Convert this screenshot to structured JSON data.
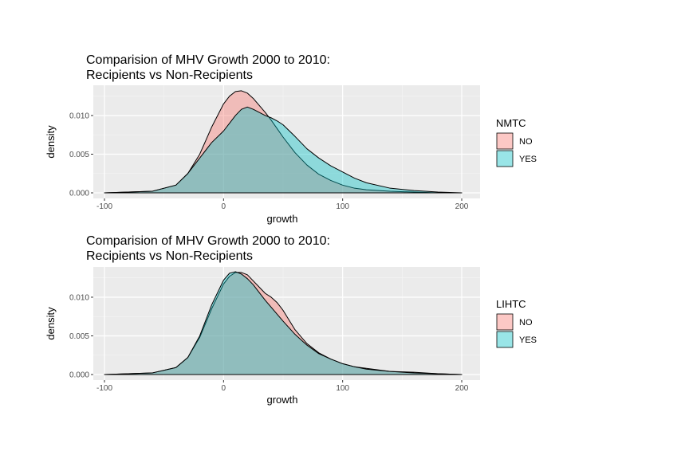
{
  "chart_data": [
    {
      "type": "area",
      "title": [
        "Comparision of MHV Growth 2000 to 2010:",
        "Recipients vs Non-Recipients"
      ],
      "xlabel": "growth",
      "ylabel": "density",
      "xlim": [
        -100,
        200
      ],
      "ylim": [
        0,
        0.0135
      ],
      "x_ticks": [
        -100,
        0,
        100,
        200
      ],
      "y_ticks": [
        0,
        0.005,
        0.01
      ],
      "y_tick_labels": [
        "0.000",
        "0.005",
        "0.010"
      ],
      "grid": true,
      "legend": {
        "title": "NMTC",
        "position": "right"
      },
      "series": [
        {
          "name": "NO",
          "color": "#F8766D",
          "x": [
            -100,
            -80,
            -60,
            -40,
            -30,
            -20,
            -10,
            0,
            5,
            10,
            15,
            20,
            25,
            30,
            35,
            40,
            45,
            50,
            60,
            70,
            80,
            90,
            100,
            110,
            120,
            140,
            160,
            180,
            200
          ],
          "values": [
            0.0,
            0.0001,
            0.0002,
            0.001,
            0.0025,
            0.005,
            0.0085,
            0.0115,
            0.0125,
            0.0131,
            0.0132,
            0.0129,
            0.0122,
            0.0113,
            0.0104,
            0.0094,
            0.0083,
            0.0072,
            0.0052,
            0.0036,
            0.0024,
            0.0016,
            0.001,
            0.0006,
            0.0004,
            0.0002,
            0.0001,
            0.0,
            0.0
          ]
        },
        {
          "name": "YES",
          "color": "#00BFC4",
          "x": [
            -100,
            -80,
            -60,
            -40,
            -30,
            -20,
            -10,
            0,
            5,
            10,
            15,
            20,
            25,
            30,
            35,
            40,
            45,
            50,
            60,
            70,
            80,
            90,
            100,
            110,
            120,
            140,
            160,
            180,
            200
          ],
          "values": [
            0.0,
            0.0001,
            0.0002,
            0.001,
            0.0025,
            0.0045,
            0.0065,
            0.008,
            0.009,
            0.01,
            0.0108,
            0.0111,
            0.0108,
            0.0104,
            0.01,
            0.0097,
            0.0093,
            0.0088,
            0.0073,
            0.0057,
            0.0045,
            0.0035,
            0.0027,
            0.0019,
            0.0013,
            0.0006,
            0.0003,
            0.0001,
            0.0
          ]
        }
      ]
    },
    {
      "type": "area",
      "title": [
        "Comparision of MHV Growth 2000 to 2010:",
        "Recipients vs Non-Recipients"
      ],
      "xlabel": "growth",
      "ylabel": "density",
      "xlim": [
        -100,
        200
      ],
      "ylim": [
        0,
        0.0135
      ],
      "x_ticks": [
        -100,
        0,
        100,
        200
      ],
      "y_ticks": [
        0,
        0.005,
        0.01
      ],
      "y_tick_labels": [
        "0.000",
        "0.005",
        "0.010"
      ],
      "grid": true,
      "legend": {
        "title": "LIHTC",
        "position": "right"
      },
      "series": [
        {
          "name": "NO",
          "color": "#F8766D",
          "x": [
            -100,
            -80,
            -60,
            -40,
            -30,
            -20,
            -10,
            0,
            5,
            10,
            15,
            20,
            25,
            30,
            35,
            40,
            45,
            50,
            60,
            70,
            80,
            90,
            100,
            110,
            120,
            140,
            160,
            180,
            200
          ],
          "values": [
            0.0,
            0.0001,
            0.0002,
            0.0009,
            0.0022,
            0.0048,
            0.0085,
            0.0117,
            0.0127,
            0.0132,
            0.0132,
            0.0129,
            0.0121,
            0.0113,
            0.0105,
            0.01,
            0.0093,
            0.0083,
            0.0058,
            0.004,
            0.0028,
            0.002,
            0.0014,
            0.001,
            0.0008,
            0.0004,
            0.0003,
            0.0001,
            0.0
          ]
        },
        {
          "name": "YES",
          "color": "#00BFC4",
          "x": [
            -100,
            -80,
            -60,
            -40,
            -30,
            -20,
            -10,
            0,
            5,
            10,
            15,
            20,
            25,
            30,
            35,
            40,
            45,
            50,
            60,
            70,
            80,
            90,
            100,
            110,
            120,
            140,
            160,
            180,
            200
          ],
          "values": [
            0.0,
            0.0001,
            0.0002,
            0.0009,
            0.0022,
            0.005,
            0.009,
            0.0122,
            0.0131,
            0.0133,
            0.013,
            0.0124,
            0.0116,
            0.0106,
            0.0096,
            0.0087,
            0.0078,
            0.0069,
            0.0052,
            0.0038,
            0.0027,
            0.002,
            0.0014,
            0.001,
            0.0007,
            0.0004,
            0.0002,
            0.0001,
            0.0
          ]
        }
      ]
    }
  ]
}
